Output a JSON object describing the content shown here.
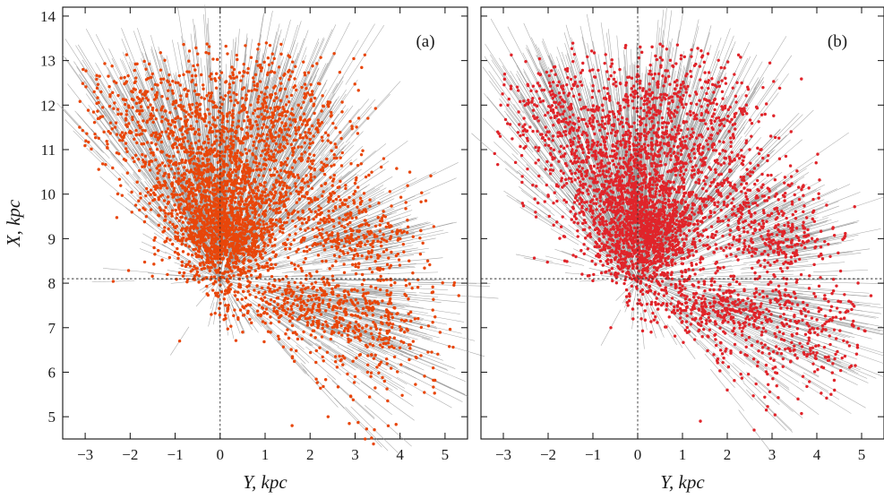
{
  "chart_data": [
    {
      "panel": "(a)",
      "type": "scatter",
      "point_color": "#e8460a",
      "vector_color": "#8c8c8c",
      "xlabel": "Y, kpc",
      "ylabel": "X, kpc",
      "xlim": [
        -3.5,
        5.5
      ],
      "ylim": [
        4.5,
        14.2
      ],
      "xticks": [
        -3,
        -2,
        -1,
        0,
        1,
        2,
        3,
        4,
        5
      ],
      "yticks": [
        5,
        6,
        7,
        8,
        9,
        10,
        11,
        12,
        13,
        14
      ],
      "reference_lines": {
        "x": 0,
        "y": 8.1
      },
      "representative_points": [
        {
          "x": -2.8,
          "y": 12.3
        },
        {
          "x": -2.2,
          "y": 11.8
        },
        {
          "x": -1.6,
          "y": 12.6
        },
        {
          "x": -1.2,
          "y": 11.4
        },
        {
          "x": -0.8,
          "y": 10.6
        },
        {
          "x": -0.5,
          "y": 12.9
        },
        {
          "x": -0.3,
          "y": 9.6
        },
        {
          "x": 0.1,
          "y": 9.1
        },
        {
          "x": 0.3,
          "y": 10.2
        },
        {
          "x": 0.6,
          "y": 11.5
        },
        {
          "x": 0.9,
          "y": 9.7
        },
        {
          "x": 1.2,
          "y": 12.1
        },
        {
          "x": 1.5,
          "y": 10.8
        },
        {
          "x": 2.0,
          "y": 9.9
        },
        {
          "x": 2.4,
          "y": 11.2
        },
        {
          "x": 2.9,
          "y": 9.0
        },
        {
          "x": 3.6,
          "y": 9.4
        },
        {
          "x": 4.2,
          "y": 8.5
        },
        {
          "x": 1.0,
          "y": 7.8
        },
        {
          "x": 1.8,
          "y": 7.4
        },
        {
          "x": 2.6,
          "y": 7.1
        },
        {
          "x": 3.4,
          "y": 6.6
        },
        {
          "x": 4.1,
          "y": 6.9
        },
        {
          "x": 3.0,
          "y": 5.9
        },
        {
          "x": 2.4,
          "y": 5.0
        },
        {
          "x": 1.6,
          "y": 4.8
        },
        {
          "x": -0.9,
          "y": 6.7
        },
        {
          "x": 0.5,
          "y": 6.9
        }
      ]
    },
    {
      "panel": "(b)",
      "type": "scatter",
      "point_color": "#e0242a",
      "vector_color": "#8c8c8c",
      "xlabel": "Y, kpc",
      "ylabel": "",
      "xlim": [
        -3.5,
        5.5
      ],
      "ylim": [
        4.5,
        14.2
      ],
      "xticks": [
        -3,
        -2,
        -1,
        0,
        1,
        2,
        3,
        4,
        5
      ],
      "yticks": [
        5,
        6,
        7,
        8,
        9,
        10,
        11,
        12,
        13,
        14
      ],
      "reference_lines": {
        "x": 0,
        "y": 8.1
      },
      "representative_points": [
        {
          "x": -2.9,
          "y": 12.0
        },
        {
          "x": -2.3,
          "y": 11.7
        },
        {
          "x": -1.7,
          "y": 12.4
        },
        {
          "x": -1.1,
          "y": 11.0
        },
        {
          "x": -0.7,
          "y": 10.4
        },
        {
          "x": -0.4,
          "y": 12.8
        },
        {
          "x": -0.2,
          "y": 9.5
        },
        {
          "x": 0.2,
          "y": 9.0
        },
        {
          "x": 0.4,
          "y": 10.0
        },
        {
          "x": 0.8,
          "y": 11.8
        },
        {
          "x": 1.0,
          "y": 9.6
        },
        {
          "x": 1.1,
          "y": 12.7
        },
        {
          "x": 1.6,
          "y": 10.6
        },
        {
          "x": 2.1,
          "y": 9.8
        },
        {
          "x": 2.5,
          "y": 11.0
        },
        {
          "x": 3.0,
          "y": 9.1
        },
        {
          "x": 3.8,
          "y": 9.2
        },
        {
          "x": 4.3,
          "y": 8.6
        },
        {
          "x": 1.1,
          "y": 7.7
        },
        {
          "x": 1.9,
          "y": 7.5
        },
        {
          "x": 2.7,
          "y": 7.0
        },
        {
          "x": 3.5,
          "y": 6.5
        },
        {
          "x": 4.4,
          "y": 6.3
        },
        {
          "x": 2.0,
          "y": 5.6
        },
        {
          "x": 2.6,
          "y": 4.7
        },
        {
          "x": 1.4,
          "y": 4.9
        },
        {
          "x": -0.6,
          "y": 7.0
        },
        {
          "x": 0.3,
          "y": 6.9
        }
      ]
    }
  ]
}
